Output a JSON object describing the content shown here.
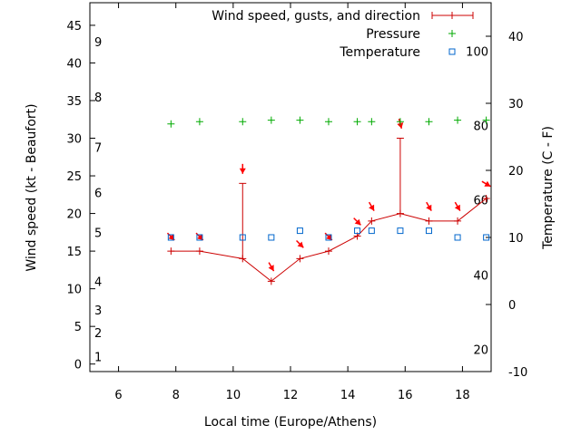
{
  "chart_data": {
    "type": "line",
    "xlabel": "Local time (Europe/Athens)",
    "ylabel_left": "Wind speed (kt - Beaufort)",
    "ylabel_right": "Temperature (C - F)",
    "xlim": [
      5,
      19
    ],
    "ylim_left": [
      -1,
      48
    ],
    "ylim_right": [
      -10,
      45
    ],
    "x_ticks": [
      6,
      8,
      10,
      12,
      14,
      16,
      18
    ],
    "y_left_ticks": [
      0,
      5,
      10,
      15,
      20,
      25,
      30,
      35,
      40,
      45
    ],
    "y_right_ticks": [
      -10,
      0,
      10,
      20,
      30,
      40
    ],
    "beaufort_ticks": [
      {
        "label": "1",
        "kt": 1
      },
      {
        "label": "2",
        "kt": 4.2
      },
      {
        "label": "3",
        "kt": 7.2
      },
      {
        "label": "4",
        "kt": 11
      },
      {
        "label": "5",
        "kt": 17.5
      },
      {
        "label": "6",
        "kt": 22.8
      },
      {
        "label": "7",
        "kt": 28.8
      },
      {
        "label": "8",
        "kt": 35.5
      },
      {
        "label": "9",
        "kt": 42.8
      }
    ],
    "fahrenheit_ticks": [
      {
        "label": "20",
        "c": -6.7
      },
      {
        "label": "40",
        "c": 4.4
      },
      {
        "label": "60",
        "c": 15.6
      },
      {
        "label": "80",
        "c": 26.7
      },
      {
        "label": "100",
        "c": 37.8
      }
    ],
    "grid": false,
    "legend_position": "top-right",
    "series": [
      {
        "name": "Wind speed, gusts, and direction",
        "color": "#cc0000",
        "x": [
          7.83,
          8.83,
          10.33,
          11.33,
          12.33,
          13.33,
          14.33,
          14.83,
          15.83,
          16.83,
          17.83,
          18.83
        ],
        "values": [
          15,
          15,
          14,
          11,
          14,
          15,
          17,
          19,
          20,
          19,
          19,
          22
        ],
        "gusts": [
          null,
          null,
          24,
          null,
          null,
          null,
          null,
          null,
          30,
          null,
          null,
          null
        ],
        "direction_deg": [
          315,
          315,
          0,
          330,
          315,
          315,
          315,
          330,
          345,
          330,
          330,
          300
        ]
      },
      {
        "name": "Pressure",
        "color": "#00aa00",
        "x": [
          7.83,
          8.83,
          10.33,
          11.33,
          12.33,
          13.33,
          14.33,
          14.83,
          15.83,
          16.83,
          17.83,
          18.83
        ],
        "values": [
          31.9,
          32.2,
          32.2,
          32.4,
          32.4,
          32.2,
          32.2,
          32.2,
          32.2,
          32.2,
          32.4,
          32.4
        ]
      },
      {
        "name": "Temperature",
        "color": "#0066cc",
        "x": [
          7.83,
          8.83,
          10.33,
          11.33,
          12.33,
          13.33,
          14.33,
          14.83,
          15.83,
          16.83,
          17.83,
          18.83
        ],
        "values": [
          10,
          10,
          10,
          10,
          11,
          10,
          11,
          11,
          11,
          11,
          10,
          10
        ]
      }
    ]
  }
}
